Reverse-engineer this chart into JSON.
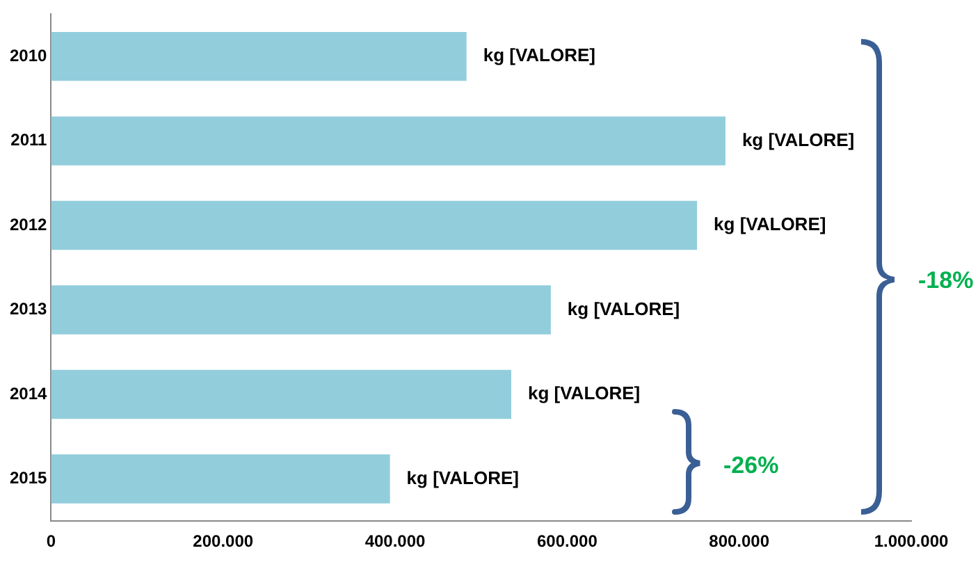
{
  "chart_data": {
    "type": "bar",
    "orientation": "horizontal",
    "categories": [
      "2010",
      "2011",
      "2012",
      "2013",
      "2014",
      "2015"
    ],
    "values": [
      483000,
      784000,
      751000,
      581000,
      535000,
      394000
    ],
    "color": "#92cddc",
    "value_labels": [
      "kg [VALORE]",
      "kg [VALORE]",
      "kg [VALORE]",
      "kg [VALORE]",
      "kg [VALORE]",
      "kg [VALORE]"
    ],
    "xlim": [
      0,
      1000000
    ],
    "xticks": [
      {
        "value": 0,
        "label": "0"
      },
      {
        "value": 200000,
        "label": "200.000"
      },
      {
        "value": 400000,
        "label": "400.000"
      },
      {
        "value": 600000,
        "label": "600.000"
      },
      {
        "value": 800000,
        "label": "800.000"
      },
      {
        "value": 1000000,
        "label": "1.000.000"
      }
    ],
    "annotations": [
      "-18%",
      "-26%"
    ],
    "grid": false,
    "legend": false
  }
}
